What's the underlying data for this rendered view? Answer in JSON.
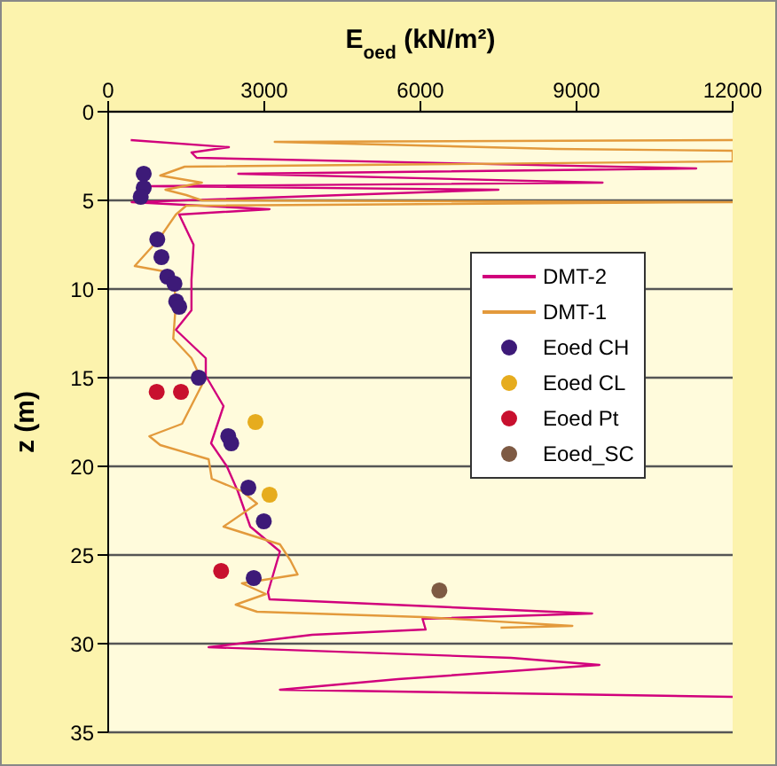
{
  "chart_data": {
    "type": "line",
    "xlabel": "E$_{oed}$ (kN/m²)",
    "ylabel": "z (m)",
    "xlim": [
      0,
      12000
    ],
    "xticks": [
      0,
      3000,
      6000,
      9000,
      12000
    ],
    "ylim": [
      35,
      0
    ],
    "yticks": [
      0,
      5,
      10,
      15,
      20,
      25,
      30,
      35
    ],
    "grid": "y",
    "legend": "right",
    "series": [
      {
        "name": "DMT-2",
        "color": "#d1007c",
        "line_style": "solid",
        "x": [
          433,
          2320,
          1600,
          1700,
          11300,
          2500,
          9500,
          800,
          7500,
          450,
          3100,
          1364,
          1640,
          1600,
          1600,
          1300,
          1875,
          1875,
          2216,
          1977,
          2280,
          2490,
          2730,
          3300,
          3170,
          3070,
          3100,
          9300,
          6040,
          6100,
          3920,
          1930,
          7740,
          9440,
          5570,
          3300,
          12000
        ],
        "values": [
          1.6,
          2.0,
          2.3,
          2.6,
          3.2,
          3.5,
          4.0,
          4.2,
          4.4,
          5.1,
          5.5,
          5.8,
          7.5,
          9.5,
          11.2,
          12.3,
          13.9,
          14.9,
          16.6,
          18.7,
          20,
          21.4,
          23.4,
          24.8,
          26.1,
          27.1,
          27.5,
          28.3,
          28.6,
          29.2,
          29.5,
          30.2,
          30.8,
          31.2,
          32.0,
          32.6,
          33.0
        ]
      },
      {
        "name": "DMT-1",
        "color": "#e39a3c",
        "line_style": "solid",
        "x": [
          12000,
          3200,
          8600,
          12000,
          12000,
          1470,
          1000,
          1800,
          1100,
          1500,
          1800,
          12000,
          1500,
          1300,
          970,
          510,
          1250,
          1300,
          1250,
          1600,
          1820,
          1420,
          790,
          1000,
          1930,
          1990,
          2570,
          2860,
          2216,
          3300,
          3500,
          3640,
          2570,
          3030,
          2450,
          2860,
          6040,
          8920,
          7540
        ],
        "values": [
          1.6,
          1.7,
          2.1,
          2.2,
          2.8,
          3.1,
          3.6,
          4.0,
          4.4,
          4.7,
          5.0,
          5.1,
          5.3,
          5.8,
          7.2,
          8.7,
          9.1,
          10.8,
          12.8,
          13.9,
          15.3,
          17.6,
          18.3,
          18.8,
          19.6,
          20.7,
          21.4,
          22.1,
          23.4,
          24.4,
          25.3,
          26.1,
          26.6,
          27.2,
          27.8,
          28.2,
          28.5,
          29.0,
          29.1
        ]
      },
      {
        "name": "Eoed CH",
        "type": "scatter",
        "marker": "circle",
        "color": "#3d1a78",
        "x": [
          682,
          682,
          625,
          943,
          1023,
          1136,
          1273,
          1307,
          1364,
          1739,
          2307,
          2364,
          2693,
          2990,
          2796
        ],
        "values": [
          3.5,
          4.3,
          4.8,
          7.2,
          8.2,
          9.3,
          9.7,
          10.7,
          11.0,
          15.0,
          18.3,
          18.7,
          21.2,
          23.1,
          26.3
        ]
      },
      {
        "name": "Eoed CL",
        "type": "scatter",
        "marker": "circle",
        "color": "#e6ac1e",
        "x": [
          2830,
          3100
        ],
        "values": [
          17.5,
          21.6
        ]
      },
      {
        "name": "Eoed Pt",
        "type": "scatter",
        "marker": "circle",
        "color": "#c8102e",
        "x": [
          932,
          1398,
          2170
        ],
        "values": [
          15.8,
          15.8,
          25.9
        ]
      },
      {
        "name": "Eoed_SC",
        "type": "scatter",
        "marker": "circle",
        "color": "#7e5a43",
        "x": [
          6364
        ],
        "values": [
          27.0
        ]
      }
    ]
  }
}
